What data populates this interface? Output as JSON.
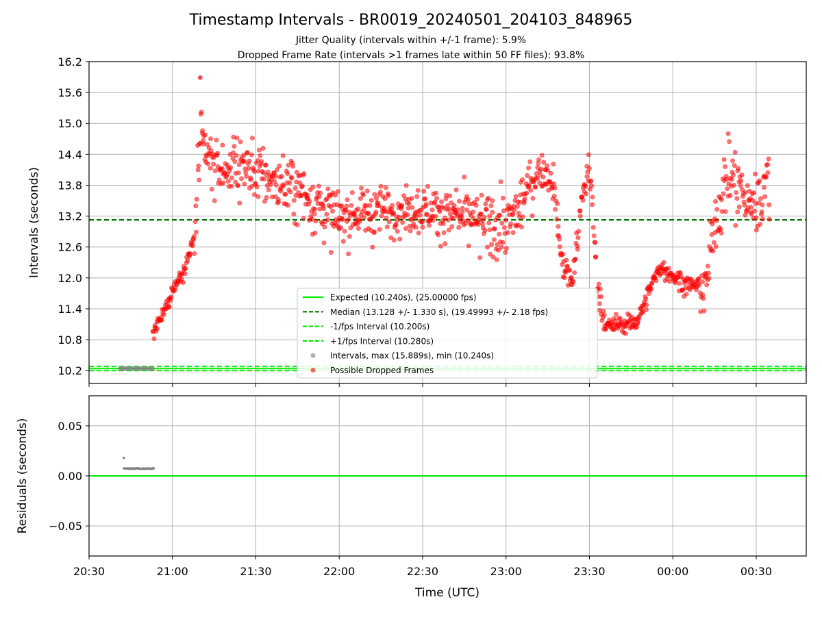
{
  "title": "Timestamp Intervals - BR0019_20240501_204103_848965",
  "subtitle_lines": [
    "Jitter Quality (intervals within +/-1 frame): 5.9%",
    "Dropped Frame Rate (intervals >1 frames late within 50 FF files): 93.8%"
  ],
  "colors": {
    "dropped": "#ff0000",
    "intervals": "#808080",
    "expected": "#00ee00",
    "median": "#007700",
    "grid": "#b0b0b0"
  },
  "chart_data": [
    {
      "id": "intervals",
      "type": "scatter",
      "ylabel": "Intervals (seconds)",
      "ylim": [
        9.95,
        16.2
      ],
      "yticks": [
        "10.2",
        "10.8",
        "11.4",
        "12.0",
        "12.6",
        "13.2",
        "13.8",
        "14.4",
        "15.0",
        "15.6",
        "16.2"
      ],
      "grid": true,
      "legend_position": "lower center",
      "lines": {
        "expected": 10.24,
        "median": 13.128,
        "minus_fps": 10.2,
        "plus_fps": 10.28
      },
      "legend": [
        {
          "label": "Expected (10.240s), (25.00000 fps)",
          "style": "solid",
          "color": "#00ee00"
        },
        {
          "label": "Median (13.128 +/- 1.330 s), (19.49993 +/- 2.18 fps)",
          "style": "dashed",
          "color": "#007700"
        },
        {
          "label": "-1/fps Interval (10.200s)",
          "style": "dashed",
          "color": "#00ee00"
        },
        {
          "label": "+1/fps Interval (10.280s)",
          "style": "dashed",
          "color": "#00ee00"
        },
        {
          "label": "Intervals, max (15.889s), min (10.240s)",
          "style": "marker",
          "color": "#808080"
        },
        {
          "label": "Possible Dropped Frames",
          "style": "marker",
          "color": "#ff0000"
        }
      ],
      "series": [
        {
          "name": "Intervals",
          "x_range": [
            "20:41",
            "20:53"
          ],
          "y": 10.24,
          "min": 10.24,
          "max": 15.889
        },
        {
          "name": "Possible Dropped Frames",
          "anchors": [
            [
              "20:53",
              10.9
            ],
            [
              "20:56",
              11.2
            ],
            [
              "21:00",
              11.75
            ],
            [
              "21:04",
              12.15
            ],
            [
              "21:08",
              12.8
            ],
            [
              "21:10",
              14.6
            ],
            [
              "21:15",
              14.1
            ],
            [
              "21:25",
              14.2
            ],
            [
              "21:35",
              13.9
            ],
            [
              "21:45",
              13.7
            ],
            [
              "21:55",
              13.3
            ],
            [
              "22:00",
              13.1
            ],
            [
              "22:10",
              13.3
            ],
            [
              "22:30",
              13.35
            ],
            [
              "22:45",
              13.15
            ],
            [
              "23:00",
              12.95
            ],
            [
              "23:05",
              13.4
            ],
            [
              "23:12",
              14.1
            ],
            [
              "23:17",
              13.9
            ],
            [
              "23:20",
              12.3
            ],
            [
              "23:24",
              11.9
            ],
            [
              "23:27",
              13.4
            ],
            [
              "23:30",
              14.2
            ],
            [
              "23:33",
              11.8
            ],
            [
              "23:36",
              11.05
            ],
            [
              "23:42",
              11.1
            ],
            [
              "23:47",
              11.15
            ],
            [
              "23:52",
              11.8
            ],
            [
              "23:55",
              12.2
            ],
            [
              "00:00",
              12.05
            ],
            [
              "00:05",
              11.85
            ],
            [
              "00:12",
              11.85
            ],
            [
              "00:15",
              13.1
            ],
            [
              "00:20",
              14.0
            ],
            [
              "00:25",
              13.6
            ],
            [
              "00:30",
              13.4
            ],
            [
              "00:35",
              14.0
            ]
          ]
        }
      ]
    },
    {
      "id": "residuals",
      "type": "scatter",
      "xlabel": "Time (UTC)",
      "ylabel": "Residuals (seconds)",
      "xlim": [
        "20:30",
        "00:48"
      ],
      "xticks": [
        "20:30",
        "21:00",
        "21:30",
        "22:00",
        "22:30",
        "23:00",
        "23:30",
        "00:00",
        "00:30"
      ],
      "ylim": [
        -0.08,
        0.08
      ],
      "yticks": [
        "0.05",
        "0.00",
        "−0.05"
      ],
      "yticks_values": [
        0.05,
        0.0,
        -0.05
      ],
      "grid": true,
      "zero_line": 0.0,
      "series": [
        {
          "name": "Residuals",
          "x_range": [
            "20:42",
            "20:56"
          ],
          "y": 0.0073,
          "outlier": [
            "20:42",
            0.018
          ]
        }
      ]
    }
  ]
}
